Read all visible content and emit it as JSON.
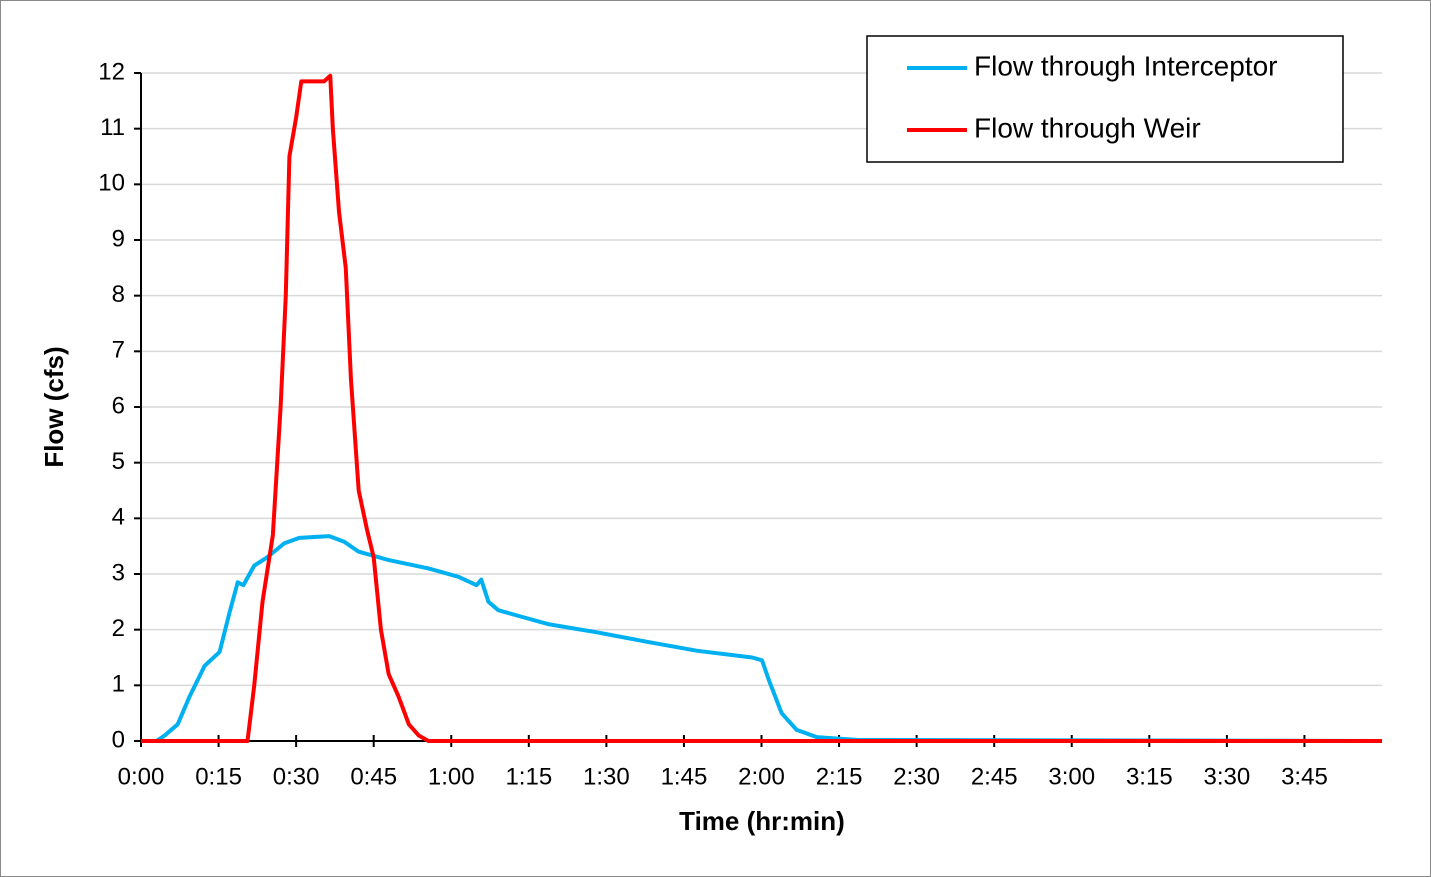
{
  "chart_data": {
    "type": "line",
    "xlabel": "Time (hr:min)",
    "ylabel": "Flow (cfs)",
    "xlim": [
      0,
      240
    ],
    "ylim": [
      0,
      12
    ],
    "xticks": [
      {
        "value": 0,
        "label": "0:00"
      },
      {
        "value": 15,
        "label": "0:15"
      },
      {
        "value": 30,
        "label": "0:30"
      },
      {
        "value": 45,
        "label": "0:45"
      },
      {
        "value": 60,
        "label": "1:00"
      },
      {
        "value": 75,
        "label": "1:15"
      },
      {
        "value": 90,
        "label": "1:30"
      },
      {
        "value": 105,
        "label": "1:45"
      },
      {
        "value": 120,
        "label": "2:00"
      },
      {
        "value": 135,
        "label": "2:15"
      },
      {
        "value": 150,
        "label": "2:30"
      },
      {
        "value": 165,
        "label": "2:45"
      },
      {
        "value": 180,
        "label": "3:00"
      },
      {
        "value": 195,
        "label": "3:15"
      },
      {
        "value": 210,
        "label": "3:30"
      },
      {
        "value": 225,
        "label": "3:45"
      }
    ],
    "yticks": [
      0,
      1,
      2,
      3,
      4,
      5,
      6,
      7,
      8,
      9,
      10,
      11,
      12
    ],
    "grid": true,
    "legend": "top-right",
    "series": [
      {
        "name": "Flow through Interceptor",
        "color": "#00b0f0",
        "x": [
          3,
          4.6,
          7.1,
          9.4,
          12.3,
          15.2,
          17.1,
          18.7,
          19.8,
          21.9,
          24.4,
          27.7,
          30.6,
          36.4,
          39.3,
          42.1,
          47.9,
          55.6,
          61.4,
          64.9,
          65.8,
          67.2,
          69.1,
          72.9,
          78.7,
          88.3,
          98,
          107.6,
          118.2,
          120.1,
          121.4,
          123.9,
          126.8,
          130.7,
          138.4,
          240
        ],
        "values": [
          0,
          0.1,
          0.3,
          0.8,
          1.35,
          1.6,
          2.3,
          2.85,
          2.8,
          3.15,
          3.3,
          3.55,
          3.65,
          3.68,
          3.58,
          3.4,
          3.25,
          3.1,
          2.95,
          2.8,
          2.9,
          2.5,
          2.35,
          2.25,
          2.1,
          1.95,
          1.78,
          1.62,
          1.5,
          1.45,
          1.1,
          0.5,
          0.2,
          0.07,
          0.02,
          0
        ]
      },
      {
        "name": "Flow through Weir",
        "color": "#ff0000",
        "x": [
          0,
          20.6,
          21.9,
          23.5,
          25.5,
          27,
          28,
          28.7,
          30,
          31,
          35.4,
          36.6,
          37.1,
          38.3,
          39.6,
          40.6,
          42.1,
          43.7,
          45,
          46.4,
          47.9,
          49.8,
          51.8,
          53.7,
          55.6,
          240
        ],
        "values": [
          0,
          0,
          1,
          2.5,
          3.7,
          6,
          8,
          10.5,
          11.2,
          11.85,
          11.85,
          11.95,
          11,
          9.5,
          8.5,
          6.5,
          4.5,
          3.8,
          3.3,
          2,
          1.2,
          0.8,
          0.3,
          0.1,
          0,
          0
        ]
      }
    ]
  }
}
